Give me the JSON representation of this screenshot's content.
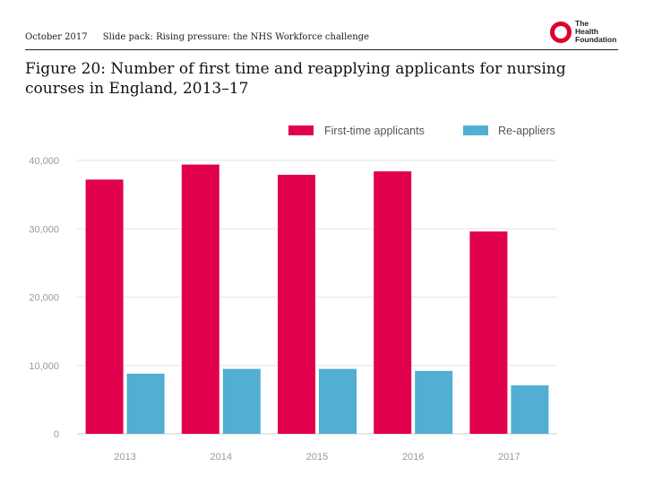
{
  "header": {
    "date": "October 2017",
    "slide_pack": "Slide pack: Rising pressure: the NHS Workforce challenge"
  },
  "logo": {
    "line1": "The",
    "line2": "Health",
    "line3": "Foundation"
  },
  "figure": {
    "title": "Figure 20: Number of first time and reapplying applicants for nursing courses in England, 2013–17"
  },
  "colors": {
    "first_time": "#e0004d",
    "re_appliers": "#52aed2",
    "grid": "#e6e6e6",
    "axis_text": "#9a9a9a",
    "legend_text": "#555555"
  },
  "chart_data": {
    "type": "bar",
    "title": "",
    "xlabel": "",
    "ylabel": "",
    "categories": [
      "2013",
      "2014",
      "2015",
      "2016",
      "2017"
    ],
    "series": [
      {
        "name": "First-time applicants",
        "values": [
          37200,
          39400,
          37900,
          38400,
          29600
        ]
      },
      {
        "name": "Re-appliers",
        "values": [
          8800,
          9500,
          9500,
          9200,
          7100
        ]
      }
    ],
    "ylim": [
      0,
      40000
    ],
    "yticks": [
      0,
      10000,
      20000,
      30000,
      40000
    ],
    "ytick_labels": [
      "0",
      "10,000",
      "20,000",
      "30,000",
      "40,000"
    ],
    "legend": "top-right",
    "grid": true
  }
}
